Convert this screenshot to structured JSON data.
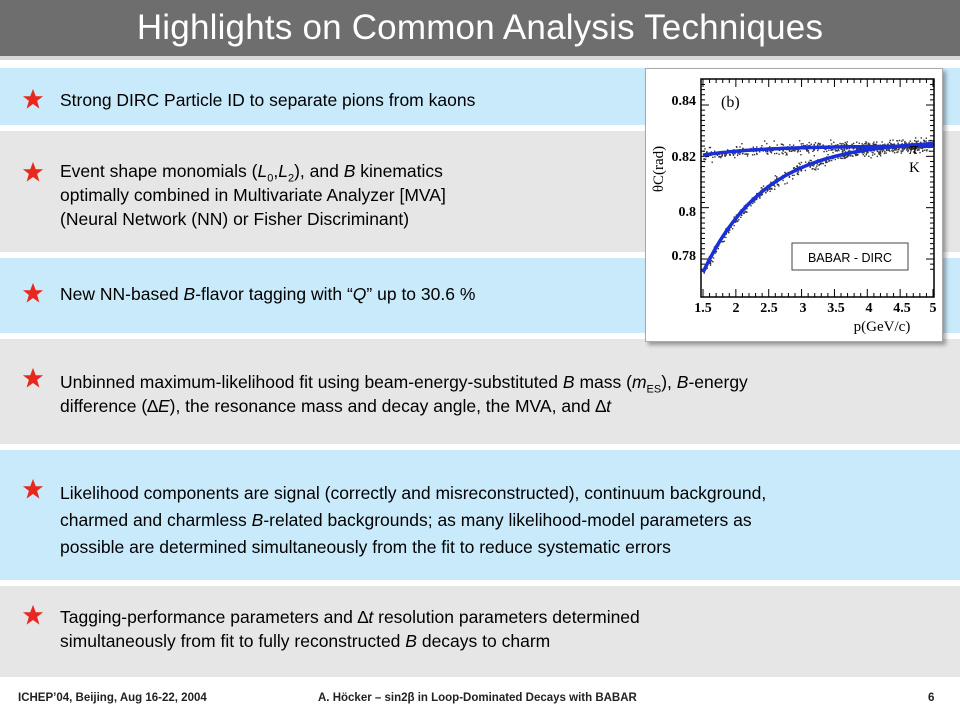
{
  "slide": {
    "title": "Highlights on Common Analysis Techniques"
  },
  "bullets": [
    {
      "segments": [
        {
          "t": "Strong DIRC Particle ID to separate pions from kaons"
        }
      ]
    },
    {
      "segments": [
        {
          "t": "Event shape monomials ("
        },
        {
          "t": "L",
          "i": true
        },
        {
          "t": "0",
          "sub": true
        },
        {
          "t": ","
        },
        {
          "t": "L",
          "i": true
        },
        {
          "t": "2",
          "sub": true
        },
        {
          "t": "), and "
        },
        {
          "t": "B",
          "i": true
        },
        {
          "t": " kinematics"
        },
        {
          "br": true
        },
        {
          "t": "optimally combined in Multivariate Analyzer [MVA]"
        },
        {
          "br": true
        },
        {
          "t": "(Neural Network (NN) or Fisher Discriminant)"
        }
      ]
    },
    {
      "segments": [
        {
          "t": "New NN-based "
        },
        {
          "t": "B",
          "i": true
        },
        {
          "t": "-flavor tagging with “"
        },
        {
          "t": "Q",
          "i": true
        },
        {
          "t": "” up to 30.6 %"
        }
      ]
    },
    {
      "segments": [
        {
          "t": "Unbinned maximum-likelihood fit using beam-energy-substituted "
        },
        {
          "t": "B",
          "i": true
        },
        {
          "t": " mass ("
        },
        {
          "t": "m",
          "i": true
        },
        {
          "t": "ES",
          "sub": true
        },
        {
          "t": "), "
        },
        {
          "t": "B",
          "i": true
        },
        {
          "t": "-energy"
        },
        {
          "br": true
        },
        {
          "t": "difference (∆"
        },
        {
          "t": "E",
          "i": true
        },
        {
          "t": "), the resonance mass and decay angle, the MVA, and ∆"
        },
        {
          "t": "t",
          "i": true
        }
      ]
    },
    {
      "segments": [
        {
          "t": "Likelihood components are signal (correctly and misreconstructed), continuum background,"
        },
        {
          "br": true
        },
        {
          "t": "charmed and charmless "
        },
        {
          "t": "B",
          "i": true
        },
        {
          "t": "-related backgrounds; as many likelihood-model parameters as"
        },
        {
          "br": true
        },
        {
          "t": "possible are determined simultaneously from the fit to reduce systematic errors"
        }
      ]
    },
    {
      "segments": [
        {
          "t": "Tagging-performance parameters and ∆"
        },
        {
          "t": "t",
          "i": true
        },
        {
          "t": " resolution parameters determined"
        },
        {
          "br": true
        },
        {
          "t": "simultaneously from fit to fully reconstructed "
        },
        {
          "t": "B",
          "i": true
        },
        {
          "t": " decays to charm"
        }
      ]
    }
  ],
  "figure": {
    "panel_label": "(b)",
    "y_axis_label": "θC(rad)",
    "x_axis_label": "p(GeV/c)",
    "x_ticks": [
      "1.5",
      "2",
      "2.5",
      "3",
      "3.5",
      "4",
      "4.5",
      "5"
    ],
    "y_ticks": [
      "0.78",
      "0.8",
      "0.82",
      "0.84"
    ],
    "curve_labels": [
      "π",
      "K"
    ],
    "badge": "BABAR - DIRC"
  },
  "footer": {
    "left": "ICHEP’04, Beijing, Aug 16-22, 2004",
    "center": "A. Höcker – sin2β in Loop-Dominated Decays with BABAR",
    "page": "6"
  },
  "colors": {
    "title_bg": "#6e6e6e",
    "band_blue": "#c9eafb",
    "band_grey": "#e6e6e6",
    "star_red": "#e8281e",
    "curve_blue": "#1a2fd6"
  }
}
